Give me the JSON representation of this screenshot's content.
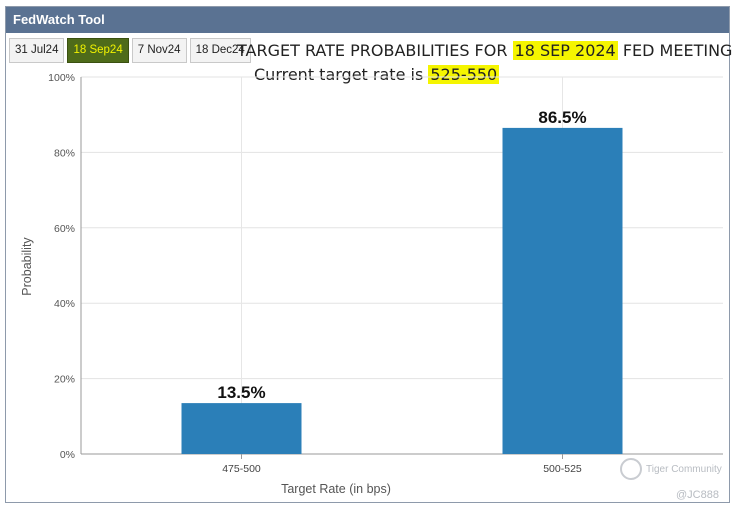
{
  "app": {
    "title": "FedWatch Tool"
  },
  "tabs": [
    {
      "label": "31 Jul24",
      "active": false
    },
    {
      "label": "18 Sep24",
      "active": true
    },
    {
      "label": "7 Nov24",
      "active": false
    },
    {
      "label": "18 Dec24",
      "active": false
    }
  ],
  "header": {
    "title_prefix": "TARGET RATE PROBABILITIES FOR",
    "meeting_date": "18 SEP 2024",
    "title_suffix": "FED MEETING",
    "current_prefix": "Current target rate is",
    "current_rate": "525-550"
  },
  "chart_data": {
    "type": "bar",
    "categories": [
      "475-500",
      "500-525"
    ],
    "values": [
      13.5,
      86.5
    ],
    "data_labels": [
      "13.5%",
      "86.5%"
    ],
    "xlabel": "Target Rate (in bps)",
    "ylabel": "Probability",
    "ylim": [
      0,
      100
    ],
    "yticks": [
      "0%",
      "20%",
      "40%",
      "60%",
      "80%",
      "100%"
    ],
    "grid": true,
    "bar_color": "#2b7fb8"
  },
  "watermark": {
    "text": "Tiger Community",
    "handle": "@JC888"
  }
}
